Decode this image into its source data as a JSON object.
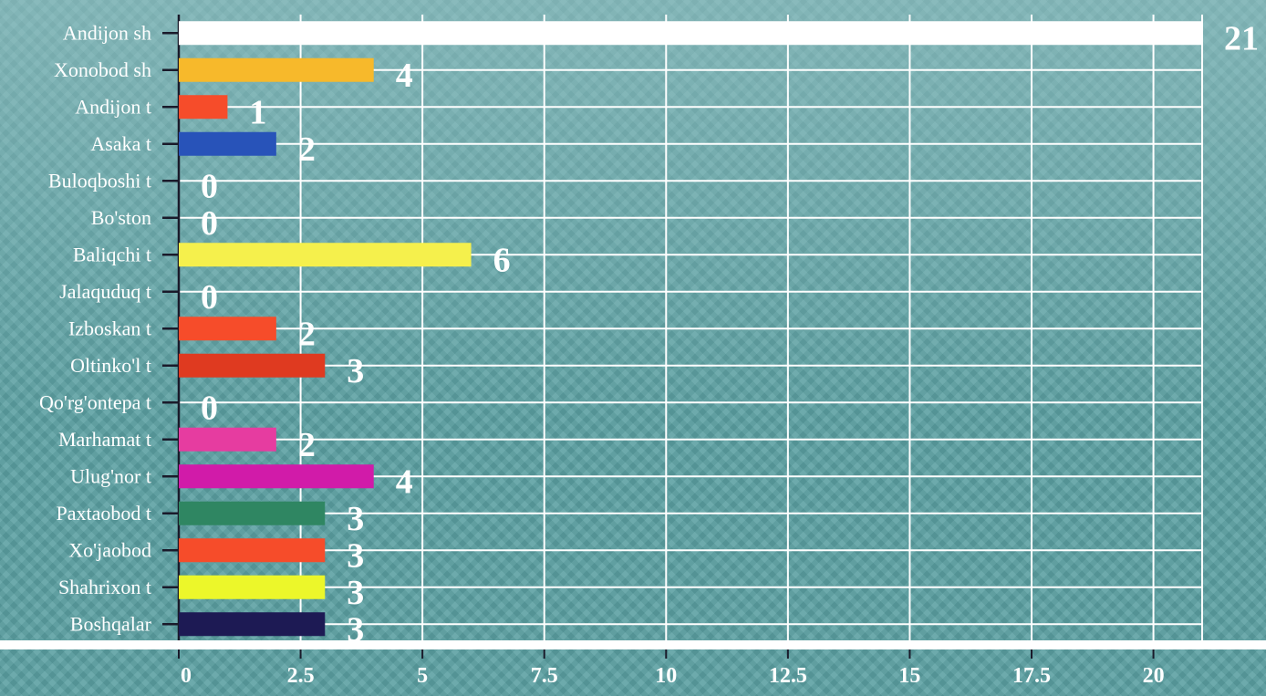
{
  "chart_data": {
    "type": "bar",
    "orientation": "horizontal",
    "categories": [
      "Andijon sh",
      "Xonobod sh",
      "Andijon t",
      "Asaka t",
      "Buloqboshi t",
      "Bo'ston",
      "Baliqchi t",
      "Jalaquduq t",
      "Izboskan t",
      "Oltinko'l t",
      "Qo'rg'ontepa t",
      "Marhamat t",
      "Ulug'nor t",
      "Paxtaobod t",
      "Xo'jaobod",
      "Shahrixon t",
      "Boshqalar"
    ],
    "values": [
      21,
      4,
      1,
      2,
      0,
      0,
      6,
      0,
      2,
      3,
      0,
      2,
      4,
      3,
      3,
      3,
      3
    ],
    "value_labels": [
      "21",
      "4",
      "1",
      "2",
      "0",
      "0",
      "6",
      "0",
      "2",
      "3",
      "0",
      "2",
      "4",
      "3",
      "3",
      "3",
      "3"
    ],
    "colors": [
      "#ffffff",
      "#f7b92b",
      "#f64c2a",
      "#2853b9",
      "#ffffff",
      "#ffffff",
      "#f5f04c",
      "#ffffff",
      "#f64c2a",
      "#df3a20",
      "#ffffff",
      "#e63ca0",
      "#d11ba9",
      "#2f8662",
      "#f64c2a",
      "#ecf72a",
      "#1d1a54"
    ],
    "xlim": [
      0,
      21
    ],
    "xticks": [
      0,
      2.5,
      5,
      7.5,
      10,
      12.5,
      15,
      17.5,
      20
    ],
    "xtick_labels": [
      "0",
      "2.5",
      "5",
      "7.5",
      "10",
      "12.5",
      "15",
      "17.5",
      "20"
    ],
    "grid": true,
    "title": "",
    "xlabel": "",
    "ylabel": ""
  }
}
